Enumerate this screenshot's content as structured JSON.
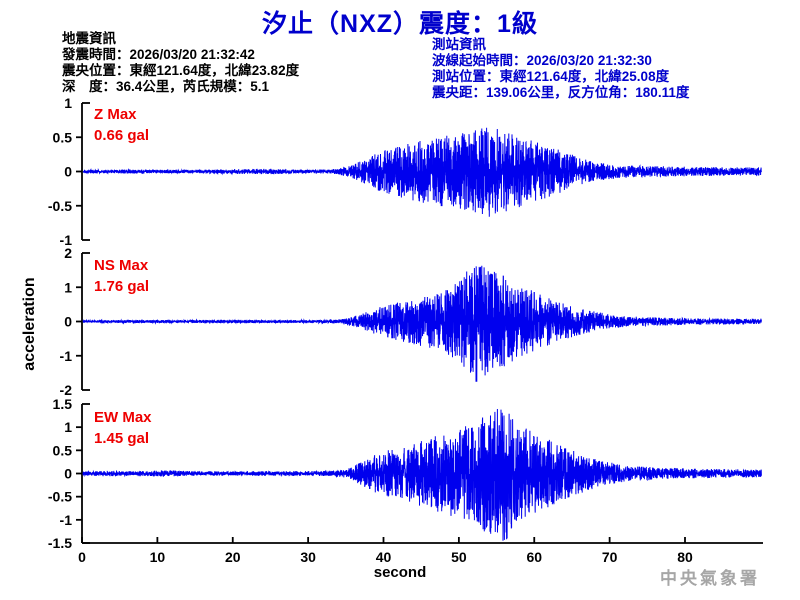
{
  "title": "汐止（NXZ）震度：1級",
  "earthquake_info": {
    "heading": "地震資訊",
    "origin_time": "發震時間：2026/03/20 21:32:42",
    "epicenter": "震央位置：東經121.64度，北緯23.82度",
    "depth_magnitude": "深　度：36.4公里，芮氏規模：5.1"
  },
  "station_info": {
    "heading": "測站資訊",
    "record_start": "波線起始時間：2026/03/20 21:32:30",
    "station_location": "測站位置：東經121.64度，北緯25.08度",
    "distance_azimuth": "震央距：139.06公里，反方位角：180.11度"
  },
  "watermark": "中央氣象署",
  "colors": {
    "title_blue": "#0000cc",
    "info_blue": "#0000cc",
    "label_red": "#ee0000",
    "trace_blue": "#0000ee",
    "axis_black": "#000000",
    "watermark_gray": "#a6a6a6"
  },
  "chart_data": {
    "type": "line",
    "title": "汐止（NXZ）震度：1級",
    "xlabel": "second",
    "ylabel": "acceleration",
    "x_range": [
      0,
      90
    ],
    "x_ticks": [
      0,
      10,
      20,
      30,
      40,
      50,
      60,
      70,
      80
    ],
    "grid": false,
    "legend": "none",
    "units": "gal",
    "channels": [
      {
        "name": "Z",
        "max_label": "Z Max",
        "max_value_label": "0.66 gal",
        "max_gal": 0.66,
        "ylim": [
          -1,
          1
        ],
        "y_ticks": [
          1,
          0.5,
          0,
          -0.5,
          -1
        ],
        "amplitude_envelope_t_gal": [
          [
            0,
            0.025
          ],
          [
            8,
            0.03
          ],
          [
            14,
            0.025
          ],
          [
            20,
            0.035
          ],
          [
            25,
            0.04
          ],
          [
            28,
            0.028
          ],
          [
            33,
            0.03
          ],
          [
            35,
            0.07
          ],
          [
            37,
            0.16
          ],
          [
            40,
            0.32
          ],
          [
            43,
            0.4
          ],
          [
            46,
            0.48
          ],
          [
            49,
            0.54
          ],
          [
            52,
            0.6
          ],
          [
            54,
            0.66
          ],
          [
            56,
            0.58
          ],
          [
            58,
            0.52
          ],
          [
            60,
            0.44
          ],
          [
            62,
            0.36
          ],
          [
            64,
            0.28
          ],
          [
            66,
            0.2
          ],
          [
            68,
            0.14
          ],
          [
            71,
            0.1
          ],
          [
            75,
            0.08
          ],
          [
            80,
            0.07
          ],
          [
            85,
            0.06
          ],
          [
            90,
            0.06
          ]
        ]
      },
      {
        "name": "NS",
        "max_label": "NS Max",
        "max_value_label": "1.76 gal",
        "max_gal": 1.76,
        "ylim": [
          -2,
          2
        ],
        "y_ticks": [
          2,
          1,
          0,
          -1,
          -2
        ],
        "amplitude_envelope_t_gal": [
          [
            0,
            0.035
          ],
          [
            6,
            0.045
          ],
          [
            12,
            0.04
          ],
          [
            18,
            0.05
          ],
          [
            24,
            0.045
          ],
          [
            30,
            0.04
          ],
          [
            34,
            0.06
          ],
          [
            36,
            0.15
          ],
          [
            38,
            0.3
          ],
          [
            40,
            0.45
          ],
          [
            43,
            0.6
          ],
          [
            46,
            0.75
          ],
          [
            48,
            0.9
          ],
          [
            50,
            1.15
          ],
          [
            52,
            1.76
          ],
          [
            54,
            1.45
          ],
          [
            56,
            1.35
          ],
          [
            58,
            1.05
          ],
          [
            60,
            0.85
          ],
          [
            62,
            0.65
          ],
          [
            64,
            0.5
          ],
          [
            66,
            0.38
          ],
          [
            68,
            0.28
          ],
          [
            70,
            0.2
          ],
          [
            73,
            0.14
          ],
          [
            77,
            0.11
          ],
          [
            82,
            0.09
          ],
          [
            90,
            0.08
          ]
        ]
      },
      {
        "name": "EW",
        "max_label": "EW Max",
        "max_value_label": "1.45 gal",
        "max_gal": 1.45,
        "ylim": [
          -1.5,
          1.5
        ],
        "y_ticks": [
          1.5,
          1,
          0.5,
          0,
          -0.5,
          -1,
          -1.5
        ],
        "amplitude_envelope_t_gal": [
          [
            0,
            0.04
          ],
          [
            3,
            0.06
          ],
          [
            7,
            0.045
          ],
          [
            11,
            0.07
          ],
          [
            14,
            0.05
          ],
          [
            20,
            0.045
          ],
          [
            25,
            0.05
          ],
          [
            30,
            0.05
          ],
          [
            33,
            0.06
          ],
          [
            35,
            0.09
          ],
          [
            37,
            0.25
          ],
          [
            39,
            0.42
          ],
          [
            41,
            0.52
          ],
          [
            44,
            0.65
          ],
          [
            47,
            0.8
          ],
          [
            50,
            0.95
          ],
          [
            52,
            1.1
          ],
          [
            54,
            1.3
          ],
          [
            56,
            1.45
          ],
          [
            58,
            1.0
          ],
          [
            60,
            0.85
          ],
          [
            63,
            0.62
          ],
          [
            66,
            0.42
          ],
          [
            69,
            0.26
          ],
          [
            72,
            0.17
          ],
          [
            76,
            0.13
          ],
          [
            81,
            0.1
          ],
          [
            86,
            0.09
          ],
          [
            90,
            0.08
          ]
        ]
      }
    ]
  }
}
